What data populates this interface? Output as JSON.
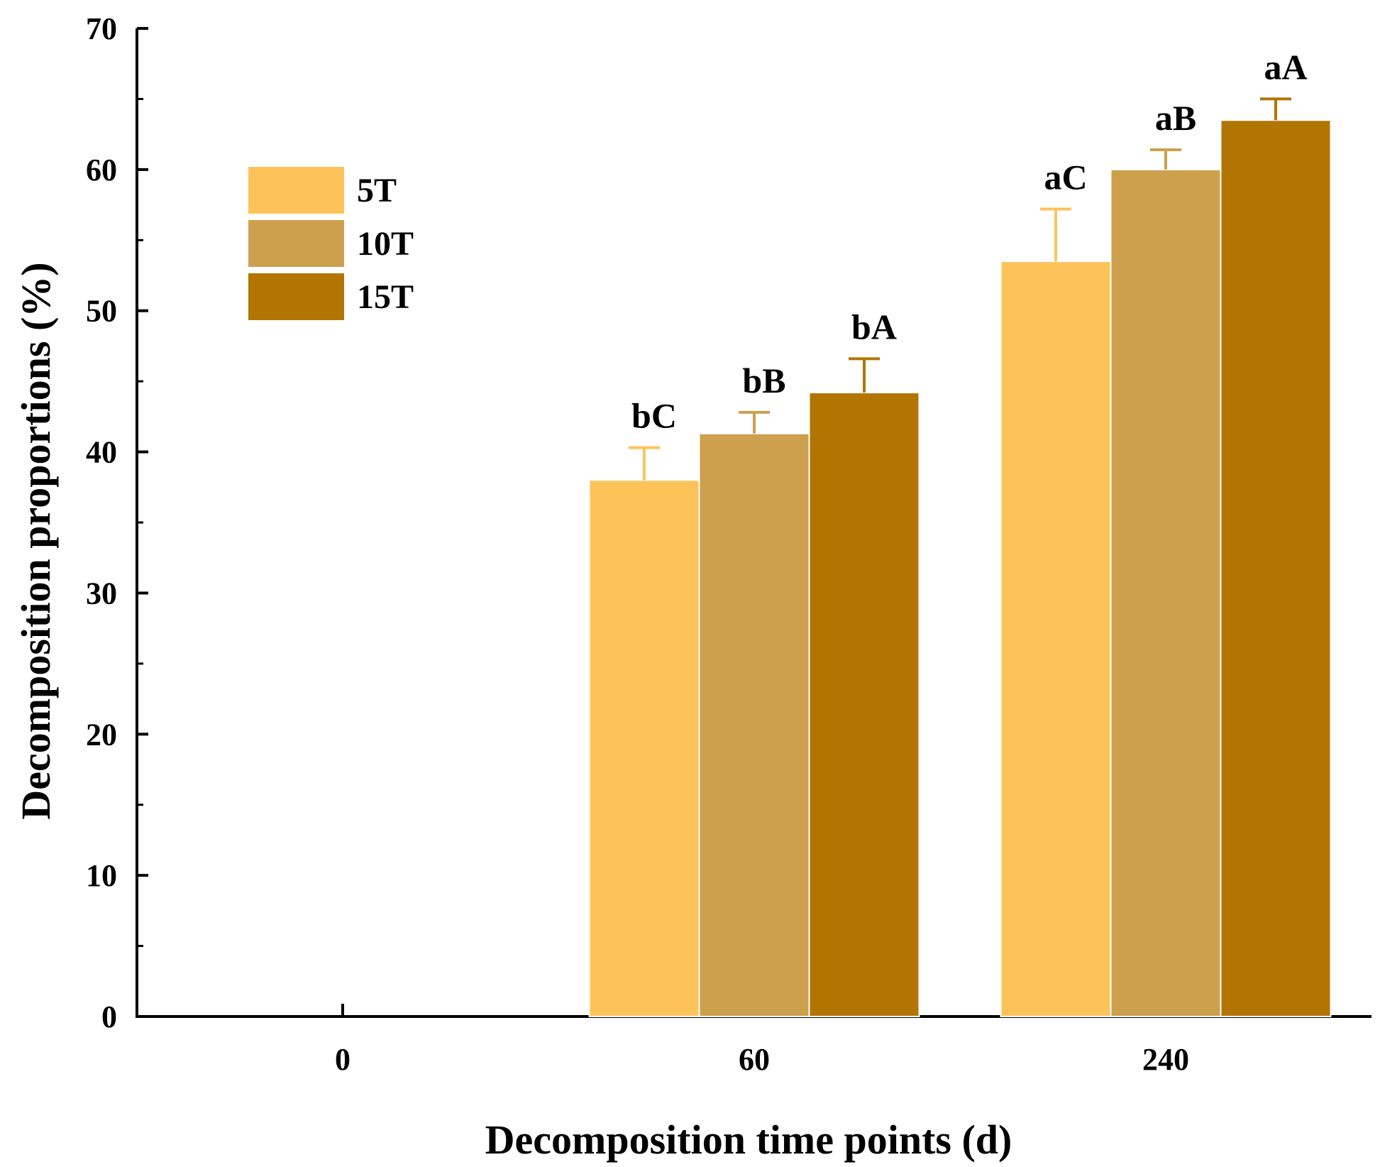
{
  "chart_data": {
    "type": "bar",
    "title": "",
    "xlabel": "Decomposition time points (d)",
    "ylabel": "Decomposition proportions (%)",
    "ylim": [
      0,
      70
    ],
    "yticks": [
      0,
      10,
      20,
      30,
      40,
      50,
      60,
      70
    ],
    "categories": [
      "0",
      "60",
      "240"
    ],
    "legend_position": "top-left",
    "series": [
      {
        "name": "5T",
        "color": "#FDC35A",
        "values": [
          null,
          38.0,
          53.5
        ],
        "errors": [
          null,
          2.3,
          3.7
        ],
        "labels": [
          "",
          "bC",
          "aC"
        ]
      },
      {
        "name": "10T",
        "color": "#CDA04E",
        "values": [
          null,
          41.3,
          60.0
        ],
        "errors": [
          null,
          1.5,
          1.4
        ],
        "labels": [
          "",
          "bB",
          "aB"
        ]
      },
      {
        "name": "15T",
        "color": "#B27502",
        "values": [
          null,
          44.2,
          63.5
        ],
        "errors": [
          null,
          2.4,
          1.5
        ],
        "labels": [
          "",
          "bA",
          "aA"
        ]
      }
    ]
  }
}
